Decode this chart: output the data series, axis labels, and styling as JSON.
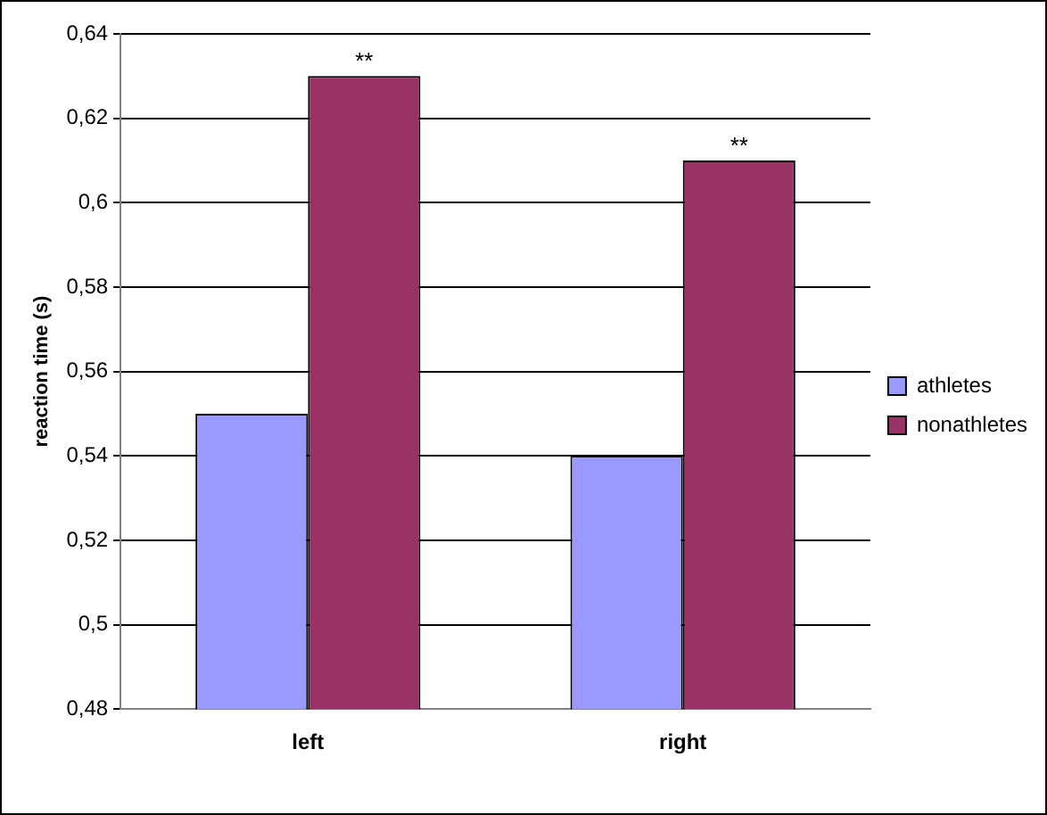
{
  "chart_data": {
    "type": "bar",
    "ylabel": "reaction time (s)",
    "categories": [
      "left",
      "right"
    ],
    "series": [
      {
        "name": "athletes",
        "color": "#9999ff",
        "values": [
          0.55,
          0.54
        ]
      },
      {
        "name": "nonathletes",
        "color": "#993366",
        "values": [
          0.63,
          0.61
        ]
      }
    ],
    "ylim": [
      0.48,
      0.64
    ],
    "yticks": [
      {
        "value": 0.48,
        "label": "0,48"
      },
      {
        "value": 0.5,
        "label": "0,5"
      },
      {
        "value": 0.52,
        "label": "0,52"
      },
      {
        "value": 0.54,
        "label": "0,54"
      },
      {
        "value": 0.56,
        "label": "0,56"
      },
      {
        "value": 0.58,
        "label": "0,58"
      },
      {
        "value": 0.6,
        "label": "0,6"
      },
      {
        "value": 0.62,
        "label": "0,62"
      },
      {
        "value": 0.64,
        "label": "0,64"
      }
    ],
    "grid": "y",
    "legend": "right",
    "annotations": [
      {
        "text": "**",
        "x": "left",
        "y": 0.63
      },
      {
        "text": "**",
        "x": "right",
        "y": 0.61
      }
    ]
  }
}
